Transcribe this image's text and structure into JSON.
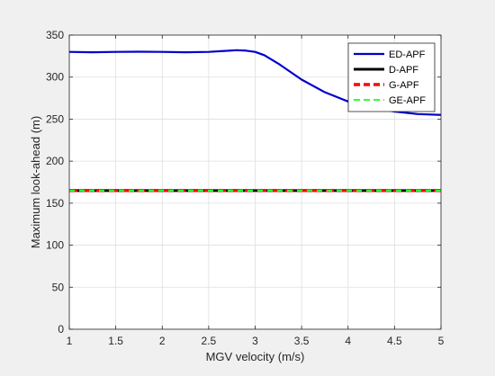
{
  "chart_data": {
    "type": "line",
    "title": "",
    "xlabel": "MGV velocity (m/s)",
    "ylabel": "Maximum look-ahead (m)",
    "xlim": [
      1,
      5
    ],
    "ylim": [
      0,
      350
    ],
    "xticks": [
      1,
      1.5,
      2,
      2.5,
      3,
      3.5,
      4,
      4.5,
      5
    ],
    "xtick_labels": [
      "1",
      "1.5",
      "2",
      "2.5",
      "3",
      "3.5",
      "4",
      "4.5",
      "5"
    ],
    "yticks": [
      0,
      50,
      100,
      150,
      200,
      250,
      300,
      350
    ],
    "ytick_labels": [
      "0",
      "50",
      "100",
      "150",
      "200",
      "250",
      "300",
      "350"
    ],
    "grid": true,
    "legend_position": "top-right",
    "series": [
      {
        "name": "ED-APF",
        "color": "#0000cc",
        "style": "solid",
        "x": [
          1,
          1.25,
          1.5,
          1.75,
          2,
          2.25,
          2.5,
          2.65,
          2.8,
          2.9,
          3,
          3.1,
          3.25,
          3.5,
          3.75,
          4,
          4.25,
          4.5,
          4.75,
          5
        ],
        "y": [
          330,
          329.5,
          330,
          330.2,
          330,
          329.5,
          330,
          331,
          332,
          331.5,
          330,
          326,
          316,
          297,
          282,
          271,
          264,
          259,
          256,
          255
        ]
      },
      {
        "name": "D-APF",
        "color": "#000000",
        "style": "solid",
        "x": [
          1,
          5
        ],
        "y": [
          165,
          165
        ]
      },
      {
        "name": "G-APF",
        "color": "#ff0000",
        "style": "dashed",
        "x": [
          1,
          5
        ],
        "y": [
          165,
          165
        ]
      },
      {
        "name": "GE-APF",
        "color": "#33ff33",
        "style": "dashed",
        "x": [
          1,
          5
        ],
        "y": [
          165,
          165
        ]
      }
    ]
  }
}
